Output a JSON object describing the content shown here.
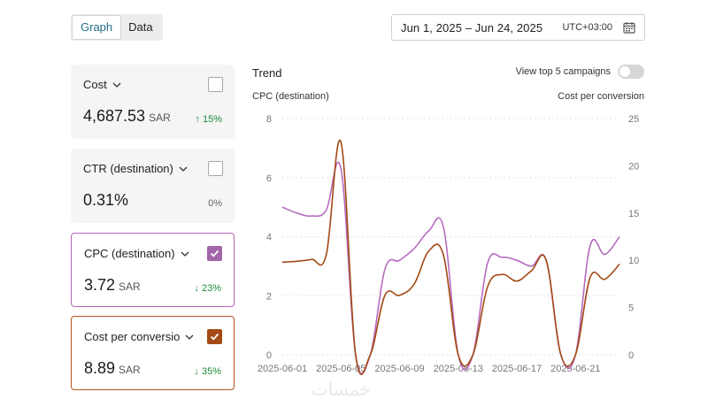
{
  "view_toggle": {
    "graph": "Graph",
    "data": "Data"
  },
  "date_range": {
    "range": "Jun 1, 2025 – Jun 24, 2025",
    "timezone": "UTC+03:00"
  },
  "cards": [
    {
      "title": "Cost",
      "value": "4,687.53",
      "unit": "SAR",
      "delta": "↑ 15%",
      "checked": false
    },
    {
      "title": "CTR (destination)",
      "value": "0.31%",
      "unit": "",
      "delta": "0%",
      "checked": false
    },
    {
      "title": "CPC (destination)",
      "value": "3.72",
      "unit": "SAR",
      "delta": "↓ 23%",
      "checked": true,
      "color": "#a366a9"
    },
    {
      "title": "Cost per conversion",
      "value": "8.89",
      "unit": "SAR",
      "delta": "↓ 35%",
      "checked": true,
      "color": "#a44a16"
    }
  ],
  "trend": {
    "title": "Trend",
    "top5_label": "View top 5 campaigns",
    "top5_on": false,
    "left_axis_title": "CPC (destination)",
    "right_axis_title": "Cost per conversion"
  },
  "colors": {
    "cpc": "#b56bbf",
    "cost_per_conversion": "#a44a16",
    "accent": "#1f6f8b"
  },
  "chart_data": {
    "type": "line",
    "x": [
      "2025-06-01",
      "2025-06-02",
      "2025-06-03",
      "2025-06-04",
      "2025-06-05",
      "2025-06-06",
      "2025-06-07",
      "2025-06-08",
      "2025-06-09",
      "2025-06-10",
      "2025-06-11",
      "2025-06-12",
      "2025-06-13",
      "2025-06-14",
      "2025-06-15",
      "2025-06-16",
      "2025-06-17",
      "2025-06-18",
      "2025-06-19",
      "2025-06-20",
      "2025-06-21",
      "2025-06-22",
      "2025-06-23",
      "2025-06-24"
    ],
    "x_tick_labels": [
      "2025-06-01",
      "2025-06-05",
      "2025-06-09",
      "2025-06-13",
      "2025-06-17",
      "2025-06-21"
    ],
    "y_left": {
      "title": "CPC (destination)",
      "ylim": [
        0,
        8
      ],
      "ticks": [
        0,
        2,
        4,
        6,
        8
      ]
    },
    "y_right": {
      "title": "Cost per conversion",
      "ylim": [
        0,
        25
      ],
      "ticks": [
        0,
        5,
        10,
        15,
        20,
        25
      ]
    },
    "grid": true,
    "series": [
      {
        "name": "CPC (destination)",
        "axis": "left",
        "values": [
          5.0,
          4.8,
          4.7,
          4.9,
          6.3,
          0,
          0,
          2.9,
          3.2,
          3.6,
          4.2,
          4.3,
          0,
          0,
          3.1,
          3.3,
          3.2,
          3.0,
          3.2,
          0,
          0,
          3.7,
          3.4,
          4.0
        ]
      },
      {
        "name": "Cost per conversion",
        "axis": "right",
        "values": [
          9.8,
          9.9,
          10.1,
          10.6,
          22.5,
          0,
          0,
          6.3,
          6.3,
          7.5,
          11.0,
          10.5,
          0,
          0,
          7.2,
          8.5,
          7.8,
          8.9,
          10.0,
          0,
          0,
          8.2,
          8.0,
          9.6
        ]
      }
    ]
  }
}
